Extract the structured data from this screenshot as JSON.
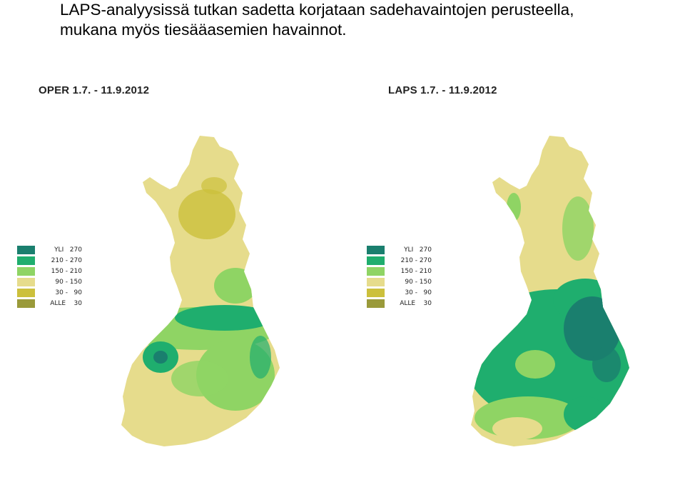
{
  "heading": {
    "line1": "LAPS-analyysissä tutkan sadetta korjataan  sadehavaintojen perusteella,",
    "line2": "mukana myös tiesääasemien havainnot."
  },
  "panels": [
    {
      "title": "OPER 1.7. - 11.9.2012"
    },
    {
      "title": "LAPS 1.7. - 11.9.2012"
    }
  ],
  "legend": [
    {
      "label": "YLI   270",
      "color": "#1a7f6e"
    },
    {
      "label": "210 - 270",
      "color": "#1fae6e"
    },
    {
      "label": "150 - 210",
      "color": "#8fd464"
    },
    {
      "label": "90 - 150",
      "color": "#e6dc8c"
    },
    {
      "label": "30 -   90",
      "color": "#ccc03c"
    },
    {
      "label": "ALLE    30",
      "color": "#9a9a3a"
    }
  ]
}
